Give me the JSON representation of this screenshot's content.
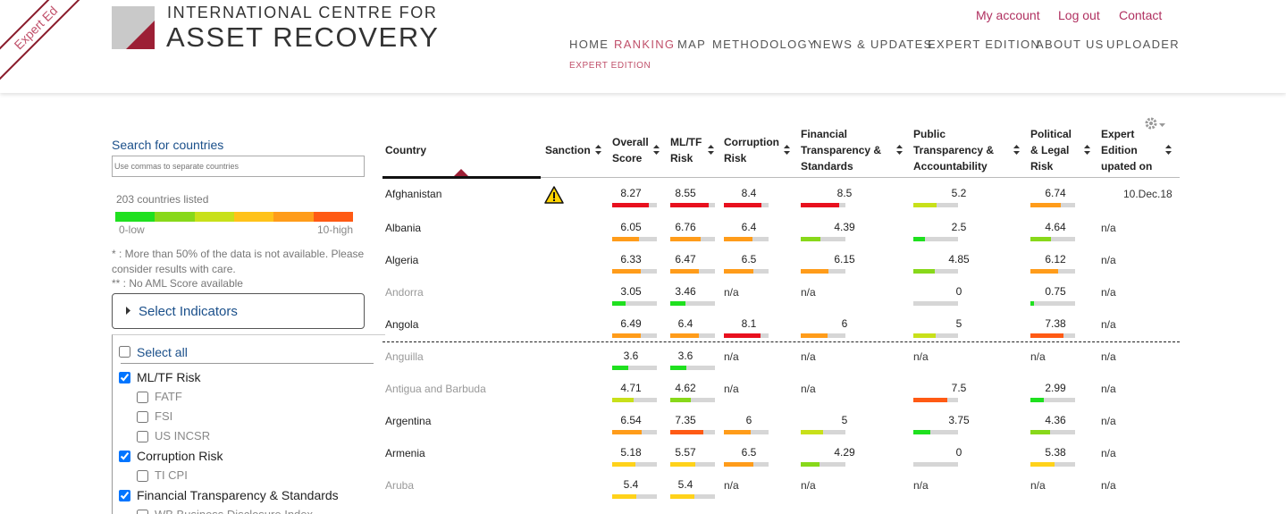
{
  "ribbon": "Expert Ed",
  "header": {
    "logo_line1": "INTERNATIONAL CENTRE FOR",
    "logo_line2": "ASSET RECOVERY",
    "top_links": [
      "My account",
      "Log out",
      "Contact"
    ],
    "nav": [
      "HOME",
      "RANKING",
      "MAP",
      "METHODOLOGY",
      "NEWS & UPDATES",
      "EXPERT EDITION",
      "ABOUT US",
      "UPLOADER"
    ],
    "active_nav": 1,
    "subnav": "EXPERT EDITION"
  },
  "sidebar": {
    "search_label": "Search for countries",
    "search_placeholder": "Use commas to separate countries",
    "count": "203 countries listed",
    "scale_colors": [
      "#1fe01f",
      "#88d81a",
      "#c8e01a",
      "#ffc21a",
      "#ff9c1a",
      "#ff5a14"
    ],
    "scale_low": "0-low",
    "scale_high": "10-high",
    "notes": [
      "* : More than 50% of the data is not available. Please consider results with care.",
      "** : No AML Score available"
    ],
    "select_indicators": "Select Indicators",
    "select_all": "Select all",
    "indicators": [
      {
        "label": "ML/TF Risk",
        "checked": true,
        "sub": false
      },
      {
        "label": "FATF",
        "checked": false,
        "sub": true
      },
      {
        "label": "FSI",
        "checked": false,
        "sub": true
      },
      {
        "label": "US INCSR",
        "checked": false,
        "sub": true
      },
      {
        "label": "Corruption Risk",
        "checked": true,
        "sub": false
      },
      {
        "label": "TI CPI",
        "checked": false,
        "sub": true
      },
      {
        "label": "Financial Transparency & Standards",
        "checked": true,
        "sub": false
      },
      {
        "label": "WB Business Disclosure Index",
        "checked": false,
        "sub": true
      }
    ]
  },
  "table": {
    "value_range": [
      0,
      10
    ],
    "columns": [
      {
        "lines": [
          "Country"
        ]
      },
      {
        "lines": [
          "Sanction"
        ]
      },
      {
        "lines": [
          "Overall",
          "Score"
        ]
      },
      {
        "lines": [
          "ML/TF",
          "Risk"
        ]
      },
      {
        "lines": [
          "Corruption",
          "Risk"
        ]
      },
      {
        "lines": [
          "Financial",
          "Transparency &",
          "Standards"
        ]
      },
      {
        "lines": [
          "Public",
          "Transparency &",
          "Accountability"
        ]
      },
      {
        "lines": [
          "Political",
          "& Legal",
          "Risk"
        ]
      },
      {
        "lines": [
          "Expert",
          "Edition",
          "upated on"
        ]
      }
    ],
    "rows": [
      {
        "country": "Afghanistan",
        "muted": false,
        "sanction": true,
        "scores": [
          {
            "value": 8.27,
            "color": "#e8101e"
          },
          {
            "value": 8.55,
            "color": "#e8101e"
          },
          {
            "value": 8.4,
            "color": "#e8101e"
          },
          {
            "value": 8.5,
            "color": "#e8101e"
          },
          {
            "value": 5.2,
            "color": "#c8e01a"
          },
          {
            "value": 6.74,
            "color": "#ff9c1a"
          }
        ],
        "expert": "10.Dec.18"
      },
      {
        "country": "Albania",
        "muted": false,
        "sanction": false,
        "scores": [
          {
            "value": 6.05,
            "color": "#ff9c1a"
          },
          {
            "value": 6.76,
            "color": "#ff9c1a"
          },
          {
            "value": 6.4,
            "color": "#ff9c1a"
          },
          {
            "value": 4.39,
            "color": "#88d81a"
          },
          {
            "value": 2.5,
            "color": "#1fe01f"
          },
          {
            "value": 4.64,
            "color": "#88d81a"
          }
        ],
        "expert": "n/a"
      },
      {
        "country": "Algeria",
        "muted": false,
        "sanction": false,
        "scores": [
          {
            "value": 6.33,
            "color": "#ff9c1a"
          },
          {
            "value": 6.47,
            "color": "#ff9c1a"
          },
          {
            "value": 6.5,
            "color": "#ff9c1a"
          },
          {
            "value": 6.15,
            "color": "#ff9c1a"
          },
          {
            "value": 4.85,
            "color": "#88d81a"
          },
          {
            "value": 6.12,
            "color": "#ff9c1a"
          }
        ],
        "expert": "n/a"
      },
      {
        "country": "Andorra",
        "muted": true,
        "sanction": false,
        "scores": [
          {
            "value": 3.05,
            "color": "#1fe01f"
          },
          {
            "value": 3.46,
            "color": "#1fe01f"
          },
          "n/a",
          "n/a",
          {
            "value": 0,
            "color": "#1fe01f"
          },
          {
            "value": 0.75,
            "color": "#1fe01f"
          }
        ],
        "expert": "n/a"
      },
      {
        "country": "Angola",
        "muted": false,
        "sanction": false,
        "divider_after": true,
        "scores": [
          {
            "value": 6.49,
            "color": "#ff9c1a"
          },
          {
            "value": 6.4,
            "color": "#ff9c1a"
          },
          {
            "value": 8.1,
            "color": "#e8101e"
          },
          {
            "value": 6,
            "color": "#ff9c1a"
          },
          {
            "value": 5,
            "color": "#c8e01a"
          },
          {
            "value": 7.38,
            "color": "#ff5a14"
          }
        ],
        "expert": "n/a"
      },
      {
        "country": "Anguilla",
        "muted": true,
        "sanction": false,
        "scores": [
          {
            "value": 3.6,
            "color": "#1fe01f"
          },
          {
            "value": 3.6,
            "color": "#1fe01f"
          },
          "n/a",
          "n/a",
          "n/a",
          "n/a"
        ],
        "expert": "n/a"
      },
      {
        "country": "Antigua and Barbuda",
        "muted": true,
        "sanction": false,
        "scores": [
          {
            "value": 4.71,
            "color": "#c8e01a"
          },
          {
            "value": 4.62,
            "color": "#88d81a"
          },
          "n/a",
          "n/a",
          {
            "value": 7.5,
            "color": "#ff5a14"
          },
          {
            "value": 2.99,
            "color": "#1fe01f"
          }
        ],
        "expert": "n/a"
      },
      {
        "country": "Argentina",
        "muted": false,
        "sanction": false,
        "scores": [
          {
            "value": 6.54,
            "color": "#ff9c1a"
          },
          {
            "value": 7.35,
            "color": "#ff5a14"
          },
          {
            "value": 6,
            "color": "#ff9c1a"
          },
          {
            "value": 5,
            "color": "#c8e01a"
          },
          {
            "value": 3.75,
            "color": "#1fe01f"
          },
          {
            "value": 4.36,
            "color": "#88d81a"
          }
        ],
        "expert": "n/a"
      },
      {
        "country": "Armenia",
        "muted": false,
        "sanction": false,
        "scores": [
          {
            "value": 5.18,
            "color": "#ffd21a"
          },
          {
            "value": 5.57,
            "color": "#ffd21a"
          },
          {
            "value": 6.5,
            "color": "#ff9c1a"
          },
          {
            "value": 4.29,
            "color": "#88d81a"
          },
          {
            "value": 0,
            "color": "#1fe01f"
          },
          {
            "value": 5.38,
            "color": "#ffd21a"
          }
        ],
        "expert": "n/a"
      },
      {
        "country": "Aruba",
        "muted": true,
        "sanction": false,
        "scores": [
          {
            "value": 5.4,
            "color": "#ffd21a"
          },
          {
            "value": 5.4,
            "color": "#ffd21a"
          },
          "n/a",
          "n/a",
          "n/a",
          "n/a"
        ],
        "expert": "n/a"
      }
    ]
  }
}
